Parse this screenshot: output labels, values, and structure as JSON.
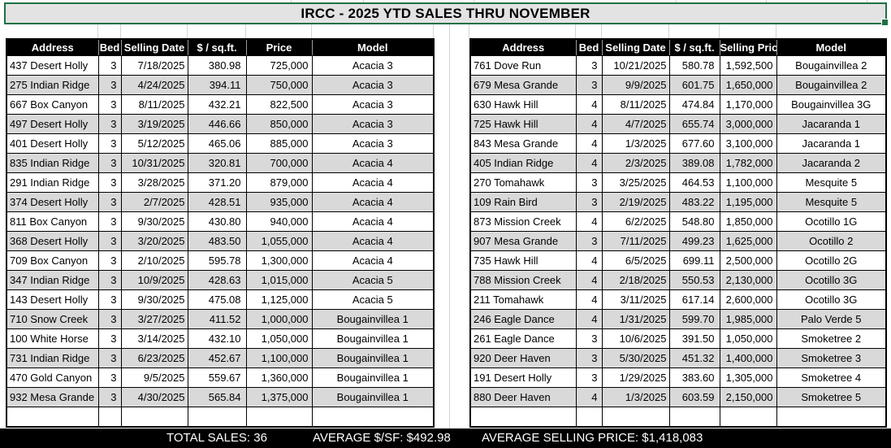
{
  "title": "IRCC - 2025 YTD SALES THRU NOVEMBER",
  "left_table": {
    "headers": [
      "Address",
      "Bed",
      "Selling Date",
      "$ / sq.ft.",
      "Price",
      "Model"
    ],
    "rows": [
      [
        "437 Desert Holly",
        "3",
        "7/18/2025",
        "380.98",
        "725,000",
        "Acacia 3"
      ],
      [
        "275 Indian Ridge",
        "3",
        "4/24/2025",
        "394.11",
        "750,000",
        "Acacia 3"
      ],
      [
        "667 Box Canyon",
        "3",
        "8/11/2025",
        "432.21",
        "822,500",
        "Acacia 3"
      ],
      [
        "497 Desert Holly",
        "3",
        "3/19/2025",
        "446.66",
        "850,000",
        "Acacia 3"
      ],
      [
        "401 Desert Holly",
        "3",
        "5/12/2025",
        "465.06",
        "885,000",
        "Acacia 3"
      ],
      [
        "835 Indian Ridge",
        "3",
        "10/31/2025",
        "320.81",
        "700,000",
        "Acacia 4"
      ],
      [
        "291 Indian Ridge",
        "3",
        "3/28/2025",
        "371.20",
        "879,000",
        "Acacia 4"
      ],
      [
        "374 Desert Holly",
        "3",
        "2/7/2025",
        "428.51",
        "935,000",
        "Acacia 4"
      ],
      [
        "811 Box Canyon",
        "3",
        "9/30/2025",
        "430.80",
        "940,000",
        "Acacia 4"
      ],
      [
        "368 Desert Holly",
        "3",
        "3/20/2025",
        "483.50",
        "1,055,000",
        "Acacia 4"
      ],
      [
        "709 Box Canyon",
        "3",
        "2/10/2025",
        "595.78",
        "1,300,000",
        "Acacia 4"
      ],
      [
        "347 Indian Ridge",
        "3",
        "10/9/2025",
        "428.63",
        "1,015,000",
        "Acacia 5"
      ],
      [
        "143 Desert Holly",
        "3",
        "9/30/2025",
        "475.08",
        "1,125,000",
        "Acacia 5"
      ],
      [
        "710 Snow Creek",
        "3",
        "3/27/2025",
        "411.52",
        "1,000,000",
        "Bougainvillea 1"
      ],
      [
        "100 White Horse",
        "3",
        "3/14/2025",
        "432.10",
        "1,050,000",
        "Bougainvillea 1"
      ],
      [
        "731 Indian Ridge",
        "3",
        "6/23/2025",
        "452.67",
        "1,100,000",
        "Bougainvillea 1"
      ],
      [
        "470 Gold Canyon",
        "3",
        "9/5/2025",
        "559.67",
        "1,360,000",
        "Bougainvillea 1"
      ],
      [
        "932 Mesa Grande",
        "3",
        "4/30/2025",
        "565.84",
        "1,375,000",
        "Bougainvillea 1"
      ]
    ]
  },
  "right_table": {
    "headers": [
      "Address",
      "Bed",
      "Selling Date",
      "$ / sq.ft.",
      "Selling Price",
      "Model"
    ],
    "rows": [
      [
        "761 Dove Run",
        "3",
        "10/21/2025",
        "580.78",
        "1,592,500",
        "Bougainvillea 2"
      ],
      [
        "679 Mesa Grande",
        "3",
        "9/9/2025",
        "601.75",
        "1,650,000",
        "Bougainvillea 2"
      ],
      [
        "630 Hawk Hill",
        "4",
        "8/11/2025",
        "474.84",
        "1,170,000",
        "Bougainvillea 3G"
      ],
      [
        "725 Hawk Hill",
        "4",
        "4/7/2025",
        "655.74",
        "3,000,000",
        "Jacaranda 1"
      ],
      [
        "843 Mesa Grande",
        "4",
        "1/3/2025",
        "677.60",
        "3,100,000",
        "Jacaranda 1"
      ],
      [
        "405 Indian Ridge",
        "4",
        "2/3/2025",
        "389.08",
        "1,782,000",
        "Jacaranda 2"
      ],
      [
        "270 Tomahawk",
        "3",
        "3/25/2025",
        "464.53",
        "1,100,000",
        "Mesquite 5"
      ],
      [
        "109 Rain Bird",
        "3",
        "2/19/2025",
        "483.22",
        "1,195,000",
        "Mesquite 5"
      ],
      [
        "873 Mission Creek",
        "4",
        "6/2/2025",
        "548.80",
        "1,850,000",
        "Ocotillo 1G"
      ],
      [
        "907 Mesa Grande",
        "3",
        "7/11/2025",
        "499.23",
        "1,625,000",
        "Ocotillo 2"
      ],
      [
        "735 Hawk Hill",
        "4",
        "6/5/2025",
        "699.11",
        "2,500,000",
        "Ocotillo 2G"
      ],
      [
        "788 Mission Creek",
        "4",
        "2/18/2025",
        "550.53",
        "2,130,000",
        "Ocotillo 3G"
      ],
      [
        "211 Tomahawk",
        "4",
        "3/11/2025",
        "617.14",
        "2,600,000",
        "Ocotillo 3G"
      ],
      [
        "246 Eagle Dance",
        "4",
        "1/31/2025",
        "599.70",
        "1,985,000",
        "Palo Verde 5"
      ],
      [
        "261 Eagle Dance",
        "3",
        "10/6/2025",
        "391.50",
        "1,050,000",
        "Smoketree 2"
      ],
      [
        "920 Deer Haven",
        "3",
        "5/30/2025",
        "451.32",
        "1,400,000",
        "Smoketree 3"
      ],
      [
        "191 Desert Holly",
        "3",
        "1/29/2025",
        "383.60",
        "1,305,000",
        "Smoketree 4"
      ],
      [
        "880 Deer Haven",
        "4",
        "1/3/2025",
        "603.59",
        "2,150,000",
        "Smoketree 5"
      ]
    ]
  },
  "footer": {
    "total_sales": "TOTAL SALES: 36",
    "average_psf": "AVERAGE $/SF: $492.98",
    "average_selling_price": "AVERAGE SELLING PRICE: $1,418,083"
  },
  "colors": {
    "accent_green": "#1e7145",
    "header_bg": "#000000",
    "row_alt_gray": "#d9d9d9",
    "title_bg": "#e3e3e3",
    "gridline": "#d4d4d4"
  }
}
